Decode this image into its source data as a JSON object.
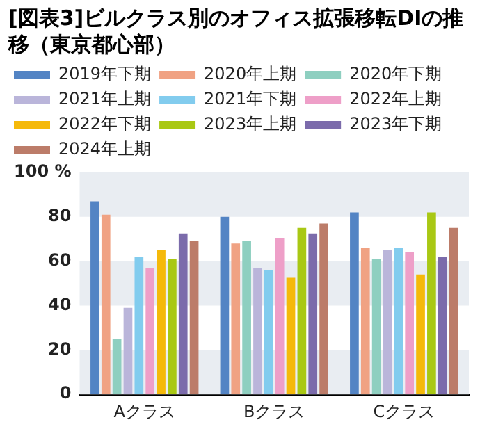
{
  "chart_data": {
    "type": "bar",
    "title": "[図表3]ビルクラス別のオフィス拡張移転DIの推移（東京都心部）",
    "categories": [
      "Aクラス",
      "Bクラス",
      "Cクラス"
    ],
    "series": [
      {
        "name": "2019年下期",
        "color": "#5384c4",
        "values": [
          87,
          80,
          82
        ]
      },
      {
        "name": "2020年上期",
        "color": "#f0a283",
        "values": [
          81,
          68,
          66
        ]
      },
      {
        "name": "2020年下期",
        "color": "#8ecfc0",
        "values": [
          25,
          69,
          61
        ]
      },
      {
        "name": "2021年上期",
        "color": "#bab5da",
        "values": [
          39,
          57,
          65
        ]
      },
      {
        "name": "2021年下期",
        "color": "#82ccee",
        "values": [
          62,
          56,
          66
        ]
      },
      {
        "name": "2022年上期",
        "color": "#ee9fc8",
        "values": [
          57,
          70.5,
          64
        ]
      },
      {
        "name": "2022年下期",
        "color": "#f5b90a",
        "values": [
          65,
          52.5,
          54
        ]
      },
      {
        "name": "2023年上期",
        "color": "#a9c814",
        "values": [
          61,
          75,
          82
        ]
      },
      {
        "name": "2023年下期",
        "color": "#7b6bab",
        "values": [
          72.5,
          72.5,
          62
        ]
      },
      {
        "name": "2024年上期",
        "color": "#bc7c69",
        "values": [
          69,
          77,
          75
        ]
      }
    ],
    "ylim": [
      0,
      100
    ],
    "yticks": [
      0,
      20,
      40,
      60,
      80,
      {
        "value": 100,
        "label": "100 %"
      }
    ],
    "bands": [
      {
        "axis": "y",
        "from": 0,
        "to": 20,
        "color": "#e9edf2"
      },
      {
        "axis": "y",
        "from": 40,
        "to": 60,
        "color": "#e9edf2"
      },
      {
        "axis": "y",
        "from": 80,
        "to": 100,
        "color": "#e9edf2"
      }
    ],
    "legend": "top",
    "grid": false
  }
}
